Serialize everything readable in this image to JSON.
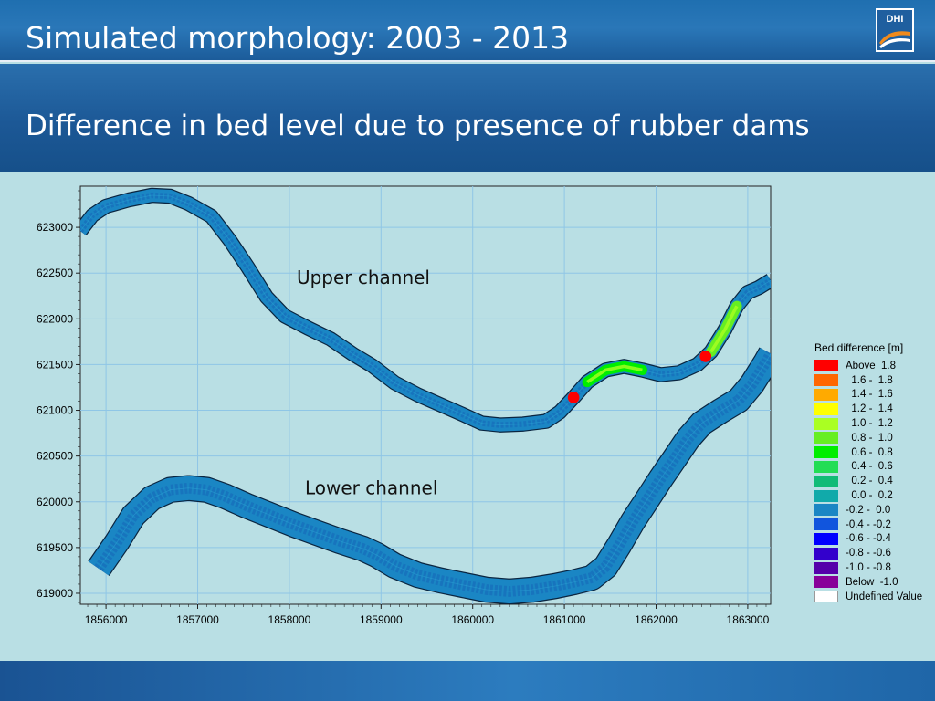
{
  "slide": {
    "title": "Simulated morphology: 2003 - 2013",
    "subtitle": "Difference in bed level due to presence of rubber dams",
    "logo_text": "DHI"
  },
  "colors": {
    "header_blue": "#1f6fb0",
    "plot_background": "#b9dfe4",
    "channel_fill": "#1a86c4",
    "channel_border": "#0a2540"
  },
  "chart_data": {
    "type": "heatmap",
    "title": "",
    "xlabel": "",
    "ylabel": "",
    "xlim": [
      1855720,
      1863250
    ],
    "ylim": [
      618880,
      623450
    ],
    "x_ticks": [
      1856000,
      1857000,
      1858000,
      1859000,
      1860000,
      1861000,
      1862000,
      1863000
    ],
    "y_ticks": [
      619000,
      619500,
      620000,
      620500,
      621000,
      621500,
      622000,
      622500,
      623000
    ],
    "x_tick_labels": [
      "1856000",
      "1857000",
      "1858000",
      "1859000",
      "1860000",
      "1861000",
      "1862000",
      "1863000"
    ],
    "y_tick_labels": [
      "619000",
      "619500",
      "620000",
      "620500",
      "621000",
      "621500",
      "622000",
      "622500",
      "623000"
    ],
    "grid": true,
    "legend_placement": "right",
    "legend": {
      "title": "Bed difference [m]",
      "entries": [
        {
          "label": "Above  1.8",
          "color": "#ff0000"
        },
        {
          "label": "  1.6 -  1.8",
          "color": "#ff6600"
        },
        {
          "label": "  1.4 -  1.6",
          "color": "#ffaa00"
        },
        {
          "label": "  1.2 -  1.4",
          "color": "#ffff00"
        },
        {
          "label": "  1.0 -  1.2",
          "color": "#aaff22"
        },
        {
          "label": "  0.8 -  1.0",
          "color": "#66ee22"
        },
        {
          "label": "  0.6 -  0.8",
          "color": "#00ee00"
        },
        {
          "label": "  0.4 -  0.6",
          "color": "#22dd55"
        },
        {
          "label": "  0.2 -  0.4",
          "color": "#11bb77"
        },
        {
          "label": "  0.0 -  0.2",
          "color": "#11aaaa"
        },
        {
          "label": "-0.2 -  0.0",
          "color": "#1a86c4"
        },
        {
          "label": "-0.4 - -0.2",
          "color": "#1155dd"
        },
        {
          "label": "-0.6 - -0.4",
          "color": "#0000ff"
        },
        {
          "label": "-0.8 - -0.6",
          "color": "#3300cc"
        },
        {
          "label": "-1.0 - -0.8",
          "color": "#5500aa"
        },
        {
          "label": "Below  -1.0",
          "color": "#880099"
        },
        {
          "label": "Undefined Value",
          "color": "#ffffff"
        }
      ]
    },
    "annotations": [
      {
        "text": "Upper channel",
        "x": 1858080,
        "y": 622380
      },
      {
        "text": "Lower channel",
        "x": 1858170,
        "y": 620080
      }
    ],
    "channels": [
      {
        "name": "upper",
        "width_m": 140,
        "centerline": [
          [
            1855720,
            622960
          ],
          [
            1855850,
            623130
          ],
          [
            1856000,
            623230
          ],
          [
            1856250,
            623300
          ],
          [
            1856500,
            623350
          ],
          [
            1856700,
            623340
          ],
          [
            1856900,
            623260
          ],
          [
            1857150,
            623120
          ],
          [
            1857350,
            622860
          ],
          [
            1857550,
            622560
          ],
          [
            1857750,
            622240
          ],
          [
            1857950,
            622030
          ],
          [
            1858200,
            621900
          ],
          [
            1858450,
            621780
          ],
          [
            1858700,
            621610
          ],
          [
            1858900,
            621490
          ],
          [
            1859150,
            621300
          ],
          [
            1859400,
            621170
          ],
          [
            1859650,
            621060
          ],
          [
            1859900,
            620950
          ],
          [
            1860100,
            620860
          ],
          [
            1860300,
            620840
          ],
          [
            1860550,
            620850
          ],
          [
            1860800,
            620880
          ],
          [
            1860950,
            620980
          ],
          [
            1861100,
            621140
          ],
          [
            1861250,
            621310
          ],
          [
            1861450,
            621440
          ],
          [
            1861650,
            621480
          ],
          [
            1861850,
            621440
          ],
          [
            1862050,
            621390
          ],
          [
            1862250,
            621410
          ],
          [
            1862450,
            621500
          ],
          [
            1862600,
            621640
          ],
          [
            1862750,
            621880
          ],
          [
            1862880,
            622140
          ],
          [
            1863000,
            622290
          ],
          [
            1863120,
            622340
          ],
          [
            1863250,
            622420
          ]
        ],
        "highlights": [
          {
            "value_class": "0.6 -  0.8",
            "from": [
              1861220,
              621270
            ],
            "to": [
              1862000,
              621400
            ]
          },
          {
            "value_class": "0.8 -  1.0",
            "from": [
              1862500,
              621560
            ],
            "to": [
              1862880,
              622140
            ]
          },
          {
            "value_class": "Above  1.8",
            "at": [
              1861100,
              621140
            ]
          },
          {
            "value_class": "Above  1.8",
            "at": [
              1862540,
              621590
            ]
          }
        ]
      },
      {
        "name": "lower",
        "width_m": 260,
        "centerline": [
          [
            1855920,
            619270
          ],
          [
            1856120,
            619560
          ],
          [
            1856300,
            619850
          ],
          [
            1856500,
            620040
          ],
          [
            1856700,
            620130
          ],
          [
            1856900,
            620150
          ],
          [
            1857100,
            620130
          ],
          [
            1857300,
            620060
          ],
          [
            1857550,
            619950
          ],
          [
            1857800,
            619850
          ],
          [
            1858050,
            619750
          ],
          [
            1858300,
            619660
          ],
          [
            1858550,
            619570
          ],
          [
            1858800,
            619490
          ],
          [
            1858950,
            619420
          ],
          [
            1859150,
            619300
          ],
          [
            1859400,
            619200
          ],
          [
            1859650,
            619140
          ],
          [
            1859900,
            619090
          ],
          [
            1860150,
            619040
          ],
          [
            1860400,
            619020
          ],
          [
            1860650,
            619040
          ],
          [
            1860900,
            619080
          ],
          [
            1861100,
            619120
          ],
          [
            1861300,
            619170
          ],
          [
            1861450,
            619290
          ],
          [
            1861600,
            619530
          ],
          [
            1861750,
            619790
          ],
          [
            1861900,
            620020
          ],
          [
            1862050,
            620250
          ],
          [
            1862200,
            620470
          ],
          [
            1862350,
            620690
          ],
          [
            1862500,
            620860
          ],
          [
            1862700,
            620990
          ],
          [
            1862900,
            621110
          ],
          [
            1863050,
            621290
          ],
          [
            1863200,
            621530
          ],
          [
            1863250,
            621620
          ]
        ]
      }
    ]
  }
}
